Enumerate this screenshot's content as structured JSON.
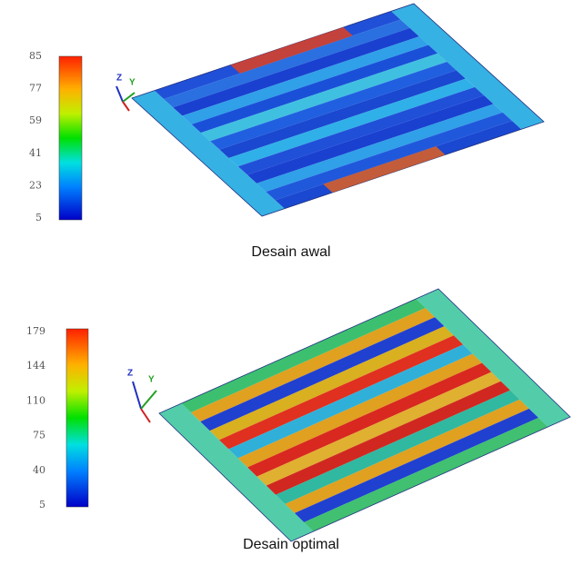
{
  "panels": [
    {
      "caption": "Desain awal",
      "colorbar_ticks": [
        "85",
        "77",
        "59",
        "41",
        "23",
        "5"
      ],
      "axis_labels": [
        "Z",
        "Y"
      ]
    },
    {
      "caption": "Desain optimal",
      "colorbar_ticks": [
        "179",
        "144",
        "110",
        "75",
        "40",
        "5"
      ],
      "axis_labels": [
        "Z",
        "Y"
      ]
    }
  ]
}
